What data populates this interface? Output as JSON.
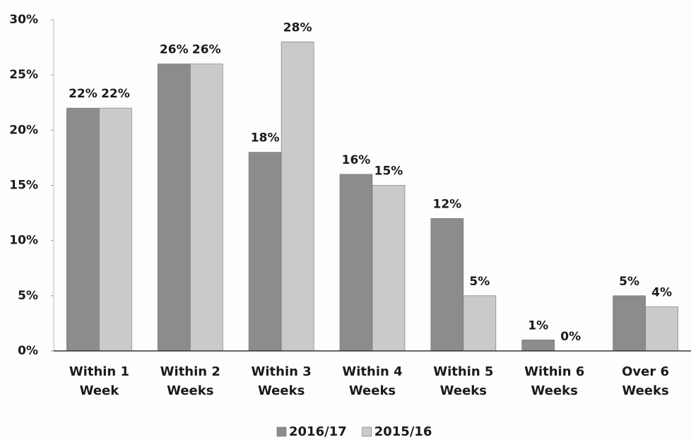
{
  "chart_data": {
    "type": "bar",
    "categories": [
      "Within 1 Week",
      "Within 2 Weeks",
      "Within 3 Weeks",
      "Within 4 Weeks",
      "Within 5 Weeks",
      "Within 6 Weeks",
      "Over 6 Weeks"
    ],
    "series": [
      {
        "name": "2016/17",
        "color": "#8c8c8c",
        "values": [
          22,
          26,
          18,
          16,
          12,
          1,
          5
        ],
        "value_labels": [
          "22%",
          "26%",
          "18%",
          "16%",
          "12%",
          "1%",
          "5%"
        ]
      },
      {
        "name": "2015/16",
        "color": "#cacaca",
        "values": [
          22,
          26,
          28,
          15,
          5,
          0,
          4
        ],
        "value_labels": [
          "22%",
          "26%",
          "28%",
          "15%",
          "5%",
          "0%",
          "4%"
        ]
      }
    ],
    "ylim": [
      0,
      30
    ],
    "yticks": [
      {
        "value": 0,
        "label": "0%"
      },
      {
        "value": 5,
        "label": "5%"
      },
      {
        "value": 10,
        "label": "10%"
      },
      {
        "value": 15,
        "label": "15%"
      },
      {
        "value": 20,
        "label": "20%"
      },
      {
        "value": 25,
        "label": "25%"
      },
      {
        "value": 30,
        "label": "30%"
      }
    ],
    "grid": false,
    "legend": "bottom"
  }
}
